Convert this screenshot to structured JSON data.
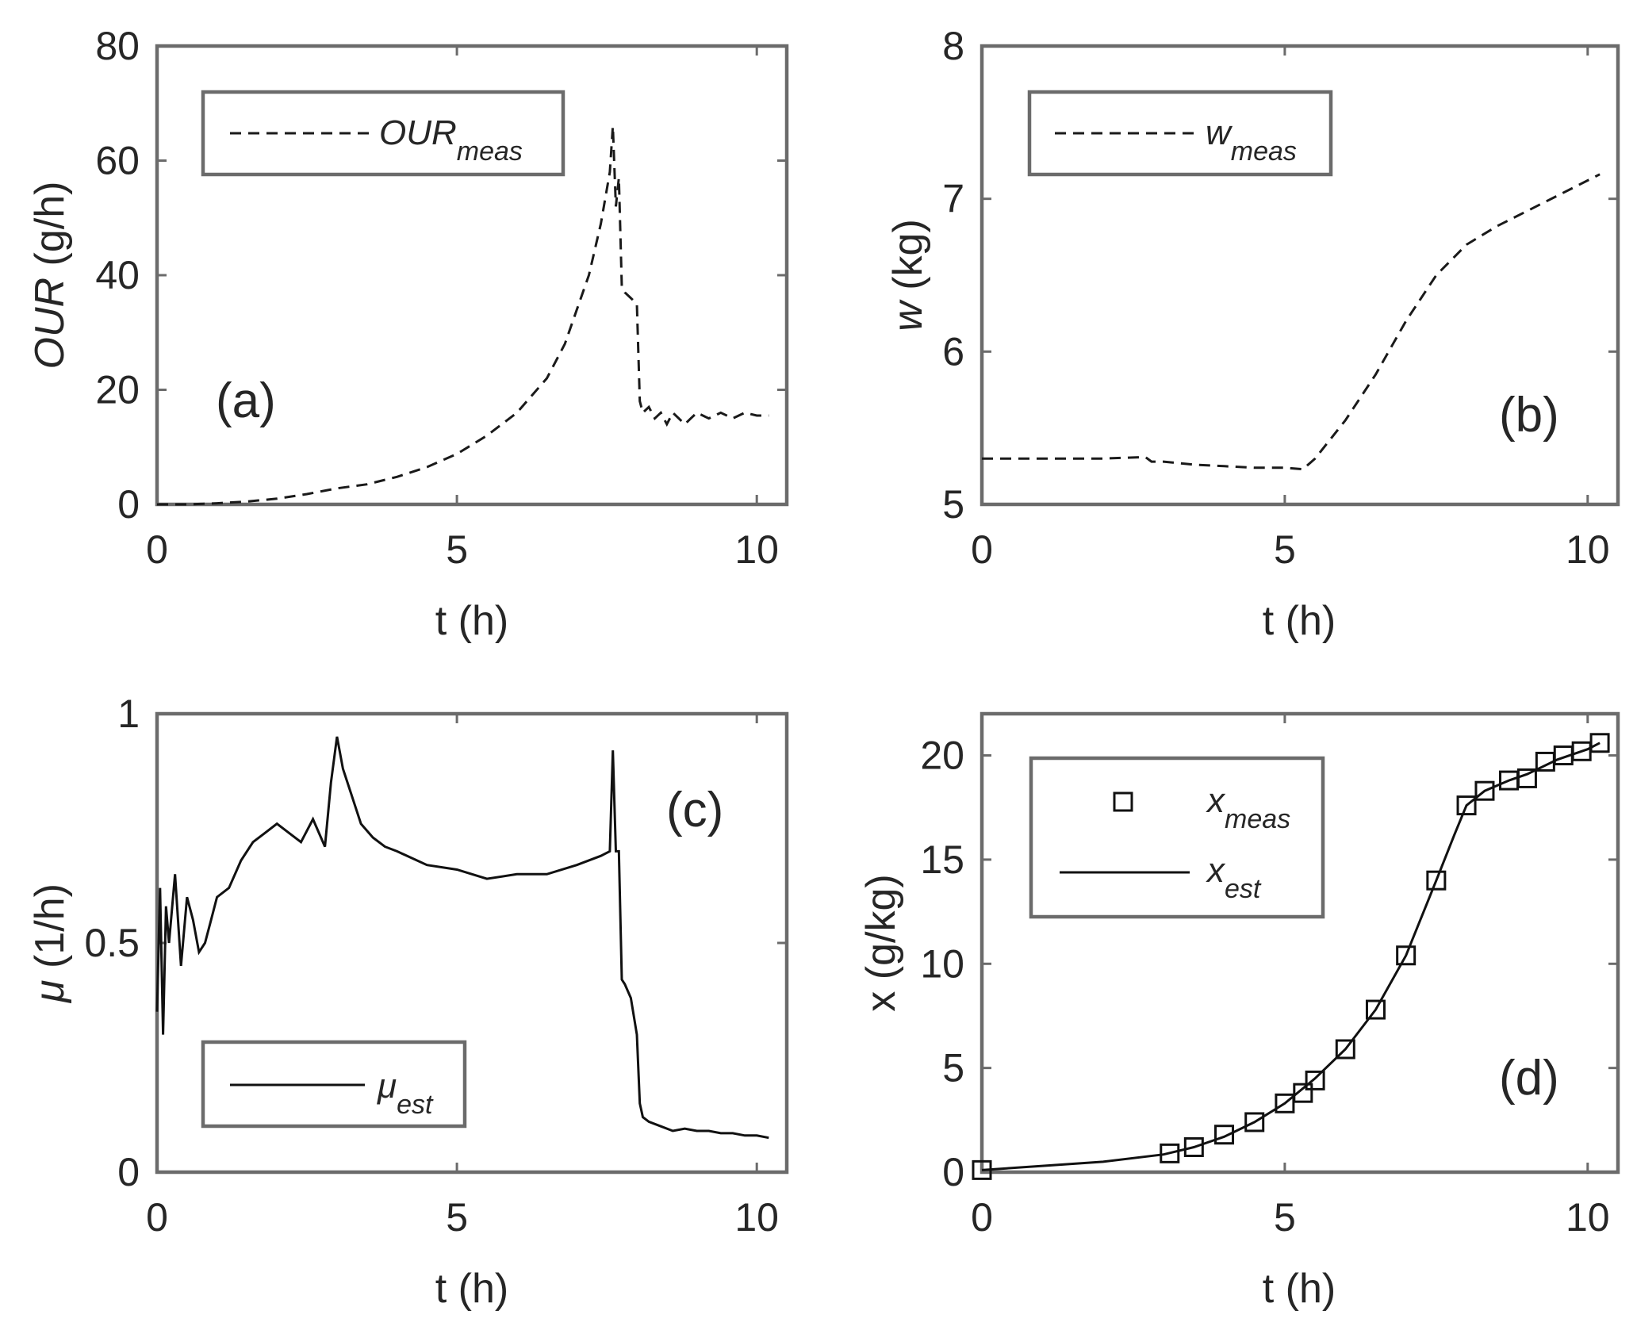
{
  "figure": {
    "panels": [
      {
        "id": "a",
        "tag": "(a)",
        "xlabel": "t (h)",
        "ylabel_var": "OUR",
        "ylabel_unit": " (g/h)",
        "xticks": [
          "0",
          "5",
          "10"
        ],
        "yticks": [
          "0",
          "20",
          "40",
          "60",
          "80"
        ],
        "legend": [
          {
            "base": "OUR",
            "sub": "meas",
            "style": "dashed"
          }
        ]
      },
      {
        "id": "b",
        "tag": "(b)",
        "xlabel": "t (h)",
        "ylabel_var": "w",
        "ylabel_unit": " (kg)",
        "xticks": [
          "0",
          "5",
          "10"
        ],
        "yticks": [
          "5",
          "6",
          "7",
          "8"
        ],
        "legend": [
          {
            "base": "w",
            "sub": "meas",
            "style": "dashed"
          }
        ]
      },
      {
        "id": "c",
        "tag": "(c)",
        "xlabel": "t (h)",
        "ylabel_var": "μ",
        "ylabel_unit": " (1/h)",
        "xticks": [
          "0",
          "5",
          "10"
        ],
        "yticks": [
          "0",
          "0.5",
          "1"
        ],
        "legend": [
          {
            "base": "μ",
            "sub": "est",
            "style": "solid"
          }
        ]
      },
      {
        "id": "d",
        "tag": "(d)",
        "xlabel": "t (h)",
        "ylabel_var": "x",
        "ylabel_unit": " (g/kg)",
        "xticks": [
          "0",
          "5",
          "10"
        ],
        "yticks": [
          "0",
          "5",
          "10",
          "15",
          "20"
        ],
        "legend": [
          {
            "base": "x",
            "sub": "meas",
            "style": "square"
          },
          {
            "base": "x",
            "sub": "est",
            "style": "solid"
          }
        ]
      }
    ]
  },
  "chart_data": [
    {
      "panel": "a",
      "type": "line",
      "title": "",
      "xlabel": "t (h)",
      "ylabel": "OUR (g/h)",
      "xlim": [
        0,
        10.5
      ],
      "ylim": [
        0,
        80
      ],
      "grid": false,
      "legend_position": "top-left",
      "series": [
        {
          "name": "OUR_meas",
          "style": "dashed",
          "x": [
            0,
            0.5,
            1,
            1.5,
            2,
            2.5,
            3,
            3.5,
            4,
            4.5,
            5,
            5.5,
            6,
            6.5,
            6.8,
            7.0,
            7.2,
            7.4,
            7.55,
            7.6,
            7.65,
            7.7,
            7.75,
            7.8,
            7.9,
            8.0,
            8.05,
            8.1,
            8.2,
            8.3,
            8.4,
            8.5,
            8.6,
            8.7,
            8.8,
            8.9,
            9.0,
            9.2,
            9.4,
            9.6,
            9.8,
            10.0,
            10.2
          ],
          "y": [
            0,
            0,
            0.2,
            0.5,
            1,
            1.8,
            2.8,
            3.5,
            4.8,
            6.5,
            8.8,
            12,
            16,
            22,
            28,
            34,
            40,
            49,
            58,
            66,
            52,
            57,
            38,
            37,
            36,
            35,
            18,
            16,
            17,
            15,
            16,
            14,
            16,
            15,
            14,
            15,
            16,
            15,
            16,
            15,
            16,
            15.5,
            15.5
          ]
        }
      ]
    },
    {
      "panel": "b",
      "type": "line",
      "title": "",
      "xlabel": "t (h)",
      "ylabel": "w (kg)",
      "xlim": [
        0,
        10.5
      ],
      "ylim": [
        5,
        8
      ],
      "grid": false,
      "legend_position": "top-left",
      "series": [
        {
          "name": "w_meas",
          "style": "dashed",
          "x": [
            0,
            1,
            2,
            2.7,
            2.8,
            3.0,
            3.5,
            4.0,
            4.5,
            5.0,
            5.3,
            5.5,
            6.0,
            6.5,
            7.0,
            7.5,
            8.0,
            8.5,
            9.0,
            9.5,
            10.0,
            10.2
          ],
          "y": [
            5.3,
            5.3,
            5.3,
            5.31,
            5.28,
            5.28,
            5.26,
            5.25,
            5.24,
            5.24,
            5.23,
            5.3,
            5.55,
            5.85,
            6.2,
            6.5,
            6.7,
            6.82,
            6.92,
            7.02,
            7.12,
            7.16
          ]
        }
      ]
    },
    {
      "panel": "c",
      "type": "line",
      "title": "",
      "xlabel": "t (h)",
      "ylabel": "μ (1/h)",
      "xlim": [
        0,
        10.5
      ],
      "ylim": [
        0,
        1
      ],
      "grid": false,
      "legend_position": "bottom-left",
      "series": [
        {
          "name": "μ_est",
          "style": "solid",
          "x": [
            0,
            0.05,
            0.1,
            0.15,
            0.2,
            0.3,
            0.4,
            0.5,
            0.6,
            0.7,
            0.8,
            0.9,
            1.0,
            1.2,
            1.4,
            1.6,
            1.8,
            2.0,
            2.2,
            2.4,
            2.6,
            2.8,
            2.9,
            3.0,
            3.1,
            3.2,
            3.4,
            3.6,
            3.8,
            4.0,
            4.5,
            5.0,
            5.5,
            6.0,
            6.5,
            7.0,
            7.4,
            7.55,
            7.6,
            7.65,
            7.7,
            7.75,
            7.8,
            7.9,
            8.0,
            8.05,
            8.1,
            8.2,
            8.4,
            8.6,
            8.8,
            9.0,
            9.2,
            9.4,
            9.6,
            9.8,
            10.0,
            10.2
          ],
          "y": [
            0.35,
            0.62,
            0.3,
            0.58,
            0.5,
            0.65,
            0.45,
            0.6,
            0.55,
            0.48,
            0.5,
            0.55,
            0.6,
            0.62,
            0.68,
            0.72,
            0.74,
            0.76,
            0.74,
            0.72,
            0.77,
            0.71,
            0.85,
            0.95,
            0.88,
            0.84,
            0.76,
            0.73,
            0.71,
            0.7,
            0.67,
            0.66,
            0.64,
            0.65,
            0.65,
            0.67,
            0.69,
            0.7,
            0.92,
            0.7,
            0.7,
            0.42,
            0.41,
            0.38,
            0.3,
            0.15,
            0.12,
            0.11,
            0.1,
            0.09,
            0.095,
            0.09,
            0.09,
            0.085,
            0.085,
            0.08,
            0.08,
            0.075
          ]
        }
      ]
    },
    {
      "panel": "d",
      "type": "line",
      "title": "",
      "xlabel": "t (h)",
      "ylabel": "x (g/kg)",
      "xlim": [
        0,
        10.5
      ],
      "ylim": [
        0,
        22
      ],
      "grid": false,
      "legend_position": "top-left",
      "series": [
        {
          "name": "x_meas",
          "style": "square-markers",
          "x": [
            0.0,
            3.1,
            3.5,
            4.0,
            4.5,
            5.0,
            5.3,
            5.5,
            6.0,
            6.5,
            7.0,
            7.5,
            8.0,
            8.3,
            8.7,
            9.0,
            9.3,
            9.6,
            9.9,
            10.2
          ],
          "y": [
            0.1,
            0.9,
            1.2,
            1.8,
            2.4,
            3.3,
            3.8,
            4.4,
            5.9,
            7.8,
            10.4,
            14.0,
            17.6,
            18.3,
            18.8,
            18.9,
            19.7,
            20.0,
            20.2,
            20.6
          ]
        },
        {
          "name": "x_est",
          "style": "solid",
          "x": [
            0.0,
            1.0,
            2.0,
            3.0,
            3.5,
            4.0,
            4.5,
            5.0,
            5.5,
            6.0,
            6.5,
            7.0,
            7.5,
            7.8,
            8.0,
            8.3,
            8.7,
            9.0,
            9.5,
            10.0,
            10.2
          ],
          "y": [
            0.1,
            0.3,
            0.5,
            0.85,
            1.2,
            1.7,
            2.4,
            3.3,
            4.5,
            5.9,
            7.8,
            10.4,
            14.0,
            16.2,
            17.6,
            18.3,
            18.8,
            19.1,
            19.8,
            20.3,
            20.6
          ]
        }
      ]
    }
  ]
}
